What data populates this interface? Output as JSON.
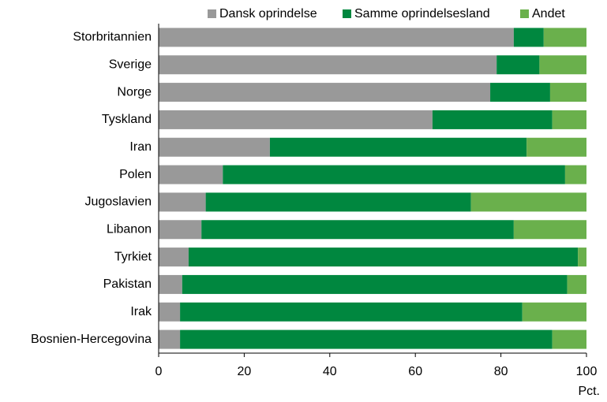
{
  "chart_data": {
    "type": "stacked_barh",
    "categories": [
      "Storbritannien",
      "Sverige",
      "Norge",
      "Tyskland",
      "Iran",
      "Polen",
      "Jugoslavien",
      "Libanon",
      "Tyrkiet",
      "Pakistan",
      "Irak",
      "Bosnien-Hercegovina"
    ],
    "series": [
      {
        "name": "Dansk oprindelse",
        "color": "#999999",
        "values": [
          83,
          79,
          77.5,
          64,
          26,
          15,
          11,
          10,
          7,
          5.5,
          5,
          5
        ]
      },
      {
        "name": "Samme oprindelsesland",
        "color": "#00873f",
        "values": [
          7,
          10,
          14,
          28,
          60,
          80,
          62,
          73,
          91,
          90,
          80,
          87
        ]
      },
      {
        "name": "Andet",
        "color": "#6ab04c",
        "values": [
          10,
          11,
          8.5,
          8,
          14,
          5,
          27,
          17,
          2,
          4.5,
          15,
          8
        ]
      }
    ],
    "xlabel": "Pct.",
    "xlim": [
      0,
      100
    ],
    "xticks": [
      0,
      20,
      40,
      60,
      80,
      100
    ],
    "legend": "top"
  }
}
